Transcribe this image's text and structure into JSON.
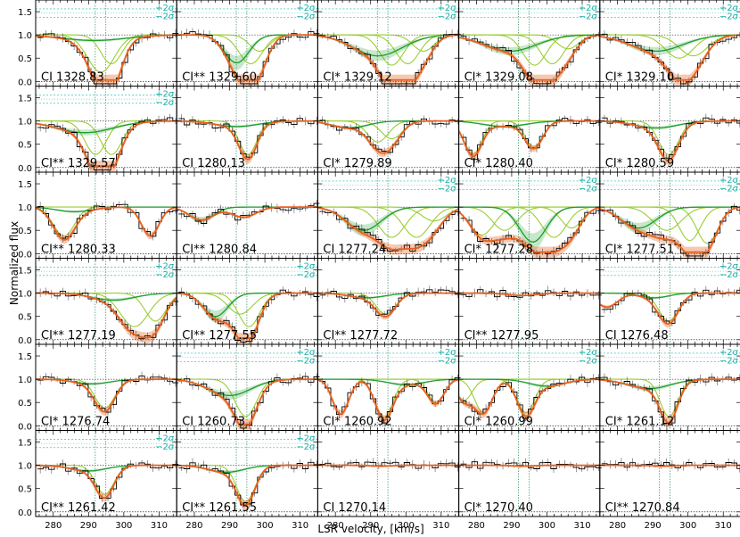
{
  "chart_data": {
    "type": "line",
    "layout": {
      "rows": 6,
      "cols": 5,
      "panel_order": "row-major"
    },
    "xlabel": "LSR velocity, [km/s]",
    "ylabel": "Normalized flux",
    "xlim": [
      275,
      315
    ],
    "ylim": [
      -0.1,
      1.75
    ],
    "x_ticks": [
      280,
      290,
      300,
      310
    ],
    "y_ticks": [
      0.0,
      0.5,
      1.0,
      1.5
    ],
    "y_tick_labels": [
      "0.0",
      "0.5",
      "1.0",
      "1.5"
    ],
    "residual_labels": [
      "+2σ",
      "−2σ"
    ],
    "colors": {
      "data": "#000000",
      "total_fit": "#e8601c",
      "components": "#9acd32",
      "component_sum": "#1f9e2f",
      "residuals": "#6b6bf0",
      "sigma_lines": "#20b2aa",
      "velocity_markers": "#2e8b57"
    },
    "velocity_markers_kms": [
      291.9,
      294.9
    ],
    "panels": [
      {
        "label": "CI 1328.83",
        "lines": [
          {
            "v": 293.5,
            "depth": 0.8,
            "width": 3.8
          },
          {
            "v": 296.5,
            "depth": 0.62,
            "width": 3.0
          },
          {
            "v": 291.6,
            "depth": 0.12,
            "width": 9.0
          }
        ],
        "show_residuals": true
      },
      {
        "label": "CI** 1329.60",
        "lines": [
          {
            "v": 292.0,
            "depth": 0.6,
            "width": 3.5
          },
          {
            "v": 296.0,
            "depth": 0.62,
            "width": 3.3
          },
          {
            "v": 298.5,
            "depth": 0.35,
            "width": 2.8
          }
        ],
        "show_residuals": true
      },
      {
        "label": "CI* 1329.12",
        "lines": [
          {
            "v": 292.0,
            "depth": 0.45,
            "width": 7.0
          },
          {
            "v": 296.0,
            "depth": 0.65,
            "width": 3.3
          },
          {
            "v": 300.5,
            "depth": 0.62,
            "width": 3.3
          },
          {
            "v": 305.0,
            "depth": 0.35,
            "width": 3.0
          }
        ],
        "show_residuals": true
      },
      {
        "label": "CI* 1329.08",
        "lines": [
          {
            "v": 289.5,
            "depth": 0.35,
            "width": 7.5
          },
          {
            "v": 296.5,
            "depth": 0.65,
            "width": 3.3
          },
          {
            "v": 301.5,
            "depth": 0.62,
            "width": 3.3
          },
          {
            "v": 306.0,
            "depth": 0.3,
            "width": 3.0
          }
        ],
        "show_residuals": true
      },
      {
        "label": "CI* 1329.10",
        "lines": [
          {
            "v": 291.0,
            "depth": 0.35,
            "width": 7.5
          },
          {
            "v": 297.5,
            "depth": 0.5,
            "width": 4.0
          },
          {
            "v": 301.5,
            "depth": 0.45,
            "width": 4.0
          }
        ],
        "show_residuals": true
      },
      {
        "label": "CI** 1329.57",
        "lines": [
          {
            "v": 292.0,
            "depth": 0.72,
            "width": 3.0
          },
          {
            "v": 296.5,
            "depth": 0.72,
            "width": 3.0
          },
          {
            "v": 289.0,
            "depth": 0.25,
            "width": 8.0
          }
        ],
        "show_residuals": true
      },
      {
        "label": "CI 1280.13",
        "lines": [
          {
            "v": 295.2,
            "depth": 0.72,
            "width": 2.5
          },
          {
            "v": 292.0,
            "depth": 0.12,
            "width": 6.0
          }
        ],
        "show_residuals": false
      },
      {
        "label": "CI* 1279.89",
        "lines": [
          {
            "v": 292.0,
            "depth": 0.45,
            "width": 3.0
          },
          {
            "v": 296.0,
            "depth": 0.38,
            "width": 3.0
          },
          {
            "v": 284.0,
            "depth": 0.15,
            "width": 5.0
          }
        ],
        "show_residuals": false
      },
      {
        "label": "CI* 1280.40",
        "lines": [
          {
            "v": 279.0,
            "depth": 0.72,
            "width": 2.5
          },
          {
            "v": 296.3,
            "depth": 0.55,
            "width": 2.5
          },
          {
            "v": 288.0,
            "depth": 0.12,
            "width": 6.0
          }
        ],
        "show_residuals": false
      },
      {
        "label": "CI* 1280.59",
        "lines": [
          {
            "v": 294.5,
            "depth": 0.72,
            "width": 2.8
          },
          {
            "v": 291.0,
            "depth": 0.15,
            "width": 6.0
          }
        ],
        "show_residuals": false
      },
      {
        "label": "CI** 1280.33",
        "lines": [
          {
            "v": 283.0,
            "depth": 0.62,
            "width": 3.0
          },
          {
            "v": 307.5,
            "depth": 0.62,
            "width": 2.5
          },
          {
            "v": 286.0,
            "depth": 0.1,
            "width": 5.0
          }
        ],
        "show_residuals": false
      },
      {
        "label": "CI** 1280.84",
        "lines": [
          {
            "v": 282.0,
            "depth": 0.28,
            "width": 3.5
          },
          {
            "v": 294.0,
            "depth": 0.22,
            "width": 3.5
          }
        ],
        "show_residuals": false
      },
      {
        "label": "CI 1277.24",
        "lines": [
          {
            "v": 288.0,
            "depth": 0.5,
            "width": 5.0
          },
          {
            "v": 296.0,
            "depth": 0.65,
            "width": 3.8
          },
          {
            "v": 303.0,
            "depth": 0.65,
            "width": 3.8
          },
          {
            "v": 308.0,
            "depth": 0.3,
            "width": 3.5
          }
        ],
        "show_residuals": true
      },
      {
        "label": "CI* 1277.28",
        "lines": [
          {
            "v": 281.5,
            "depth": 0.6,
            "width": 3.5
          },
          {
            "v": 288.0,
            "depth": 0.5,
            "width": 3.5
          },
          {
            "v": 296.0,
            "depth": 0.75,
            "width": 3.8
          },
          {
            "v": 302.0,
            "depth": 0.65,
            "width": 3.5
          },
          {
            "v": 307.0,
            "depth": 0.45,
            "width": 3.0
          }
        ],
        "show_residuals": true
      },
      {
        "label": "CI* 1277.51",
        "lines": [
          {
            "v": 286.0,
            "depth": 0.45,
            "width": 5.0
          },
          {
            "v": 294.0,
            "depth": 0.5,
            "width": 4.0
          },
          {
            "v": 300.5,
            "depth": 0.72,
            "width": 3.0
          },
          {
            "v": 305.5,
            "depth": 0.78,
            "width": 3.0
          }
        ],
        "show_residuals": true
      },
      {
        "label": "CI** 1277.19",
        "lines": [
          {
            "v": 303.0,
            "depth": 0.72,
            "width": 4.0
          },
          {
            "v": 309.0,
            "depth": 0.6,
            "width": 3.0
          },
          {
            "v": 297.0,
            "depth": 0.15,
            "width": 6.0
          }
        ],
        "show_residuals": true
      },
      {
        "label": "CI** 1277.55",
        "lines": [
          {
            "v": 286.0,
            "depth": 0.5,
            "width": 3.5
          },
          {
            "v": 293.0,
            "depth": 0.45,
            "width": 3.5
          },
          {
            "v": 295.5,
            "depth": 0.72,
            "width": 3.0
          }
        ],
        "show_residuals": true
      },
      {
        "label": "CI** 1277.72",
        "lines": [
          {
            "v": 294.3,
            "depth": 0.45,
            "width": 2.8
          },
          {
            "v": 289.0,
            "depth": 0.1,
            "width": 5.0
          }
        ],
        "show_residuals": false
      },
      {
        "label": "CI** 1277.95",
        "lines": [
          {
            "v": 293.0,
            "depth": 0.05,
            "width": 4.0
          }
        ],
        "show_residuals": false
      },
      {
        "label": "CI 1276.48",
        "lines": [
          {
            "v": 294.5,
            "depth": 0.6,
            "width": 2.8
          },
          {
            "v": 277.0,
            "depth": 0.3,
            "width": 3.0
          },
          {
            "v": 290.5,
            "depth": 0.1,
            "width": 4.0
          }
        ],
        "show_residuals": true
      },
      {
        "label": "CI* 1276.74",
        "lines": [
          {
            "v": 294.6,
            "depth": 0.62,
            "width": 2.8
          },
          {
            "v": 291.0,
            "depth": 0.1,
            "width": 5.0
          }
        ],
        "show_residuals": false
      },
      {
        "label": "CI 1260.73",
        "lines": [
          {
            "v": 294.6,
            "depth": 0.8,
            "width": 3.0
          },
          {
            "v": 290.0,
            "depth": 0.35,
            "width": 6.0
          }
        ],
        "show_residuals": true
      },
      {
        "label": "CI* 1260.92",
        "lines": [
          {
            "v": 281.5,
            "depth": 0.75,
            "width": 2.3
          },
          {
            "v": 293.8,
            "depth": 0.82,
            "width": 2.5
          },
          {
            "v": 308.5,
            "depth": 0.5,
            "width": 2.3
          },
          {
            "v": 300.0,
            "depth": 0.12,
            "width": 5.0
          }
        ],
        "show_residuals": true
      },
      {
        "label": "CI* 1260.99",
        "lines": [
          {
            "v": 276.5,
            "depth": 0.45,
            "width": 2.3
          },
          {
            "v": 282.0,
            "depth": 0.72,
            "width": 2.5
          },
          {
            "v": 294.0,
            "depth": 0.72,
            "width": 2.5
          },
          {
            "v": 300.0,
            "depth": 0.15,
            "width": 5.0
          }
        ],
        "show_residuals": true
      },
      {
        "label": "CI* 1261.12",
        "lines": [
          {
            "v": 294.6,
            "depth": 0.8,
            "width": 2.5
          },
          {
            "v": 289.0,
            "depth": 0.2,
            "width": 6.0
          }
        ],
        "show_residuals": true
      },
      {
        "label": "CI** 1261.42",
        "lines": [
          {
            "v": 294.6,
            "depth": 0.62,
            "width": 2.6
          },
          {
            "v": 290.0,
            "depth": 0.12,
            "width": 5.0
          }
        ],
        "show_residuals": true
      },
      {
        "label": "CI** 1261.55",
        "lines": [
          {
            "v": 294.6,
            "depth": 0.78,
            "width": 2.6
          },
          {
            "v": 289.0,
            "depth": 0.15,
            "width": 5.0
          }
        ],
        "show_residuals": true
      },
      {
        "label": "CI 1270.14",
        "lines": [
          {
            "v": 293.0,
            "depth": 0.02,
            "width": 3.0
          }
        ],
        "show_residuals": false
      },
      {
        "label": "CI* 1270.40",
        "lines": [
          {
            "v": 293.0,
            "depth": 0.02,
            "width": 3.0
          }
        ],
        "show_residuals": false
      },
      {
        "label": "CI** 1270.84",
        "lines": [
          {
            "v": 293.0,
            "depth": 0.02,
            "width": 3.0
          }
        ],
        "show_residuals": false
      }
    ]
  }
}
